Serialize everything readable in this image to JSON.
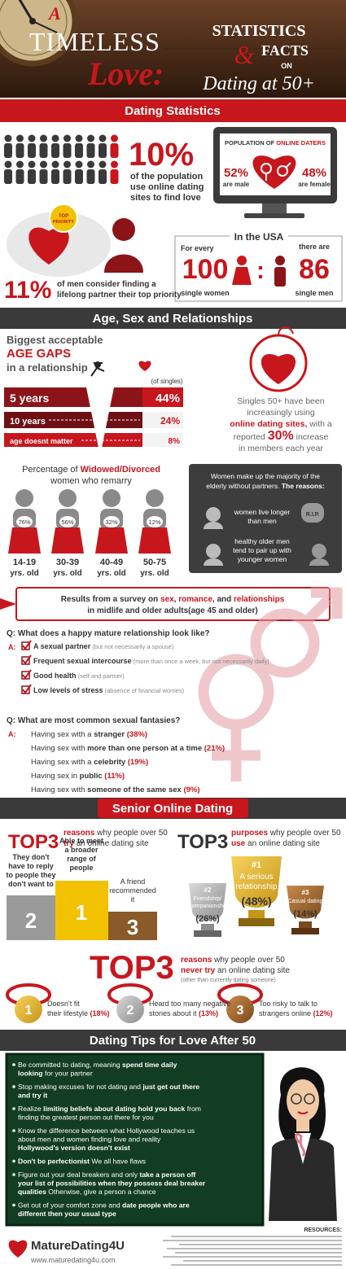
{
  "header": {
    "a": "A",
    "timeless": "TIMELESS",
    "love": "Love:",
    "statistics": "STATISTICS",
    "amp": "&",
    "facts": "FACTS",
    "on": "ON",
    "dating": "Dating at 50+"
  },
  "sections": [
    "Dating Statistics",
    "Age, Sex and Relationships",
    "Senior Online Dating",
    "Dating Tips for Love After 50"
  ],
  "dating_stats": {
    "population": {
      "pct": "10%",
      "lines": [
        "of the population",
        "use online dating",
        "sites to find love"
      ]
    },
    "monitor": {
      "title": "POPULATION OF ",
      "title_em": "ONLINE DATERS",
      "male_pct": "52%",
      "male": "are male",
      "female_pct": "48%",
      "female": "are female"
    },
    "priority": {
      "badge": [
        "TOP",
        "PRIORITY"
      ],
      "pct": "11%",
      "lines": [
        "of men consider finding a",
        "lifelong partner their top priority"
      ]
    },
    "usa": {
      "title": "In the USA",
      "for_every": "For every",
      "women": "100",
      "women_label": "single women",
      "colon": ":",
      "there_are": "there are",
      "men": "86",
      "men_label": "single men"
    }
  },
  "age_gaps": {
    "heading": "Biggest acceptable",
    "heading_em": "AGE GAPS",
    "heading_end": "in a relationship",
    "note": "(of singles)",
    "rows": [
      {
        "label": "5 years",
        "pct": "44%"
      },
      {
        "label": "10 years",
        "pct": "24%"
      },
      {
        "label": "age doesnt matter",
        "pct": "8%"
      }
    ]
  },
  "online_growth": {
    "l1": "Singles 50+ have been",
    "l2": "increasingly using",
    "l3_em": "online dating sites,",
    "l3": " with a",
    "l4": "reported ",
    "l4_em": "30%",
    "l4_end": " increase",
    "l5": "in members each year"
  },
  "remarry": {
    "title": "Percentage of ",
    "title_em": "Widowed/Divorced",
    "title_end": "women who remarry",
    "groups": [
      {
        "pct": "76%",
        "ages": "14-19",
        "unit": "yrs. old"
      },
      {
        "pct": "56%",
        "ages": "30-39",
        "unit": "yrs. old"
      },
      {
        "pct": "32%",
        "ages": "40-49",
        "unit": "yrs. old"
      },
      {
        "pct": "12%",
        "ages": "50-75",
        "unit": "yrs. old"
      }
    ]
  },
  "reasons": {
    "intro": "Women make up the majority of the",
    "intro2": "elderly without partners. ",
    "intro_em": "The reasons:",
    "r1": [
      "women live longer",
      "than men"
    ],
    "rip": "R.I.P.",
    "r2": [
      "healthy older men",
      "tend to pair up with",
      "younger women"
    ]
  },
  "survey": {
    "banner": [
      "Results from a survey on ",
      "sex",
      ", ",
      "romance",
      ", and ",
      "relationships"
    ],
    "banner2": "in midlife and older adults(age 45 and older)",
    "q1": {
      "q": "Q: What does a happy mature relationship look like?",
      "a": "A:",
      "items": [
        {
          "text": "A sexual partner",
          "note": " (but not necessarily a spouse)"
        },
        {
          "text": "Frequent sexual intercourse",
          "note": " (more than once a week, but not necessarily daily)"
        },
        {
          "text": "Good health",
          "note": " (self and partner)"
        },
        {
          "text": "Low levels of stress",
          "note": " (absence of financial worries)"
        }
      ]
    },
    "q2": {
      "q": "Q: What are most common sexual fantasies?",
      "a": "A:",
      "items": [
        [
          "Having sex with a ",
          "stranger",
          " (38%)"
        ],
        [
          "Having sex with ",
          "more than one person at a time",
          " (21%)"
        ],
        [
          "Having sex with a ",
          "celebrity",
          " (19%)"
        ],
        [
          "Having sex in ",
          "public",
          " (11%)"
        ],
        [
          "Having sex with ",
          "someone of the same sex",
          " (9%)"
        ]
      ]
    }
  },
  "senior": {
    "try": {
      "top": "TOP3",
      "l1_em": "reasons",
      "l1": " why people over 50",
      "l2_em": "try",
      "l2": " an online dating site",
      "podium": [
        {
          "rank": "2",
          "caption": [
            "They don't",
            "have to reply",
            "to people they",
            "don't want to"
          ]
        },
        {
          "rank": "1",
          "caption": [
            "Able to meet",
            "a broader",
            "range of",
            "people"
          ]
        },
        {
          "rank": "3",
          "caption": [
            "A friend",
            "recommended",
            "it"
          ]
        }
      ]
    },
    "purposes": {
      "top": "TOP3",
      "l1_em": "purposes",
      "l1": " why people over 50",
      "l2_em": "use",
      "l2": " an online dating site",
      "trophies": [
        {
          "rank": "#2",
          "label": [
            "Friendship/",
            "Companionship"
          ],
          "pct": "(26%)"
        },
        {
          "rank": "#1",
          "label": [
            "A serious",
            "relationship"
          ],
          "pct": "(48%)"
        },
        {
          "rank": "#3",
          "label": [
            "Casual dating"
          ],
          "pct": "(14%)"
        }
      ]
    },
    "never": {
      "top": "TOP3",
      "l1_em": "reasons",
      "l1": " why people over 50",
      "l2_em": "never try",
      "l2": " an online dating site",
      "note": "(other than currently dating someone)",
      "medals": [
        {
          "rank": "1",
          "lines": [
            "Doesn't fit",
            "their lifestyle "
          ],
          "pct": "(18%)"
        },
        {
          "rank": "2",
          "lines": [
            "Heard too many negative",
            "stories about it "
          ],
          "pct": "(13%)"
        },
        {
          "rank": "3",
          "lines": [
            "Too risky to talk to",
            "strangers online "
          ],
          "pct": "(12%)"
        }
      ]
    }
  },
  "tips": [
    [
      [
        {
          "t": "Be committed to dating, meaning ",
          "b": false
        },
        {
          "t": "spend time daily",
          "b": true
        }
      ],
      [
        {
          "t": "looking",
          "b": true
        },
        {
          "t": " for your partner",
          "b": false
        }
      ]
    ],
    [
      [
        {
          "t": "Stop making excuses for not dating and ",
          "b": false
        },
        {
          "t": "just get out there",
          "b": true
        }
      ],
      [
        {
          "t": "and try it",
          "b": true
        }
      ]
    ],
    [
      [
        {
          "t": "Realize ",
          "b": false
        },
        {
          "t": "limiting beliefs about dating hold you back",
          "b": true
        },
        {
          "t": " from",
          "b": false
        }
      ],
      [
        {
          "t": "finding the greatest person out there for you",
          "b": false
        }
      ]
    ],
    [
      [
        {
          "t": "Know the difference between what Hollywood teaches us",
          "b": false
        }
      ],
      [
        {
          "t": "about men and women finding love and reality",
          "b": false
        }
      ],
      [
        {
          "t": "Hollywood's version doesn't exist",
          "b": true
        }
      ]
    ],
    [
      [
        {
          "t": "Don't be perfectionist",
          "b": true
        },
        {
          "t": " We all have flaws",
          "b": false
        }
      ]
    ],
    [
      [
        {
          "t": "Figure out your deal breakers and only ",
          "b": false
        },
        {
          "t": "take a person off",
          "b": true
        }
      ],
      [
        {
          "t": "your list of possibilities when they possess deal breaker",
          "b": true
        }
      ],
      [
        {
          "t": "qualities",
          "b": true
        },
        {
          "t": " Otherwise, give a person a chance",
          "b": false
        }
      ]
    ],
    [
      [
        {
          "t": "Get out of your comfort zone and ",
          "b": false
        },
        {
          "t": "date people who are",
          "b": true
        }
      ],
      [
        {
          "t": "different then your usual type",
          "b": true
        }
      ]
    ]
  ],
  "footer": {
    "brand": "MatureDating4U",
    "url": "www.maturedating4u.com",
    "resources": "RESOURCES:"
  }
}
